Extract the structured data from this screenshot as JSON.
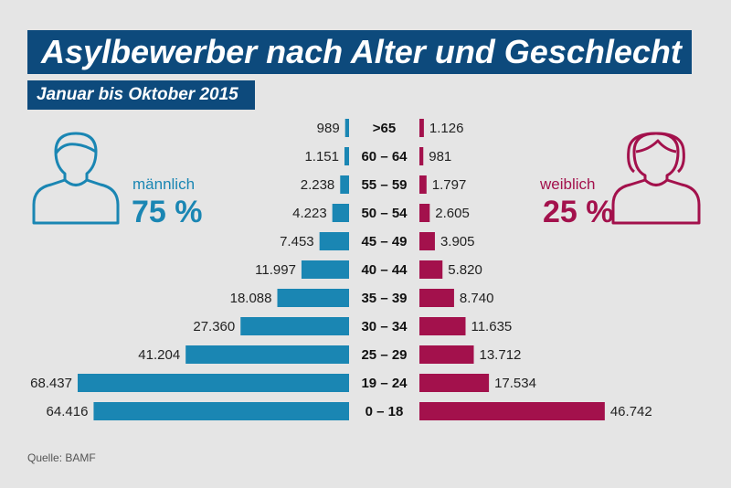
{
  "title": "Asylbewerber nach Alter und Geschlecht",
  "subtitle": "Januar bis Oktober 2015",
  "source": "Quelle: BAMF",
  "male": {
    "label": "männlich",
    "percent": "75 %",
    "color": "#1a86b3",
    "icon": "male-person-icon"
  },
  "female": {
    "label": "weiblich",
    "percent": "25 %",
    "color": "#a3114c",
    "icon": "female-person-icon"
  },
  "chart_data": {
    "type": "bar",
    "orientation": "horizontal-pyramid",
    "categories": [
      ">65",
      "60 – 64",
      "55 – 59",
      "50 – 54",
      "45 – 49",
      "40 – 44",
      "35 – 39",
      "30 – 34",
      "25 – 29",
      "19 – 24",
      "0 – 18"
    ],
    "series": [
      {
        "name": "männlich",
        "values": [
          989,
          1151,
          2238,
          4223,
          7453,
          11997,
          18088,
          27360,
          41204,
          68437,
          64416
        ],
        "labels": [
          "989",
          "1.151",
          "2.238",
          "4.223",
          "7.453",
          "11.997",
          "18.088",
          "27.360",
          "41.204",
          "68.437",
          "64.416"
        ]
      },
      {
        "name": "weiblich",
        "values": [
          1126,
          981,
          1797,
          2605,
          3905,
          5820,
          8740,
          11635,
          13712,
          17534,
          46742
        ],
        "labels": [
          "1.126",
          "981",
          "1.797",
          "2.605",
          "3.905",
          "5.820",
          "8.740",
          "11.635",
          "13.712",
          "17.534",
          "46.742"
        ]
      }
    ]
  }
}
